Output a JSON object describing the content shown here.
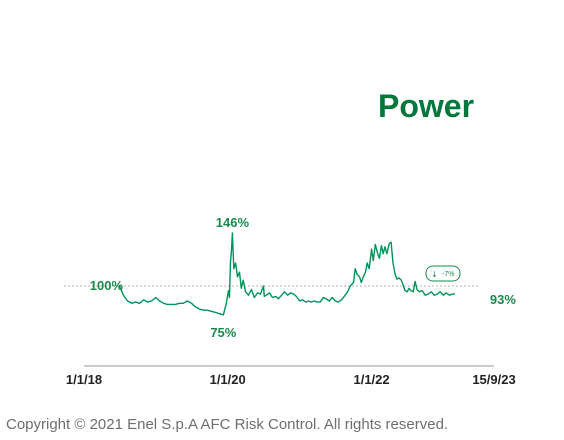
{
  "title": "Power",
  "copyright": "Copyright © 2021 Enel S.p.A AFC Risk Control. All rights reserved.",
  "colors": {
    "series": "#00935a",
    "title": "#00783c",
    "label": "#1a8a4c",
    "axis": "#9a9a9a",
    "text": "#222222"
  },
  "chart_data": {
    "type": "line",
    "title": "Power",
    "x_tick_labels": [
      "1/1/18",
      "1/1/20",
      "1/1/22",
      "15/9/23"
    ],
    "x_tick_dates": [
      "2018-01-01",
      "2020-01-01",
      "2022-01-01",
      "2023-09-15"
    ],
    "reference_line": {
      "value": 100,
      "label": "100%",
      "style": "dashed"
    },
    "annotations": [
      {
        "text": "146%",
        "date": "2020-01-25",
        "value": 146
      },
      {
        "text": "75%",
        "date": "2019-12-10",
        "value": 75
      },
      {
        "text": "93%",
        "date": "2023-06-20",
        "value": 93
      }
    ],
    "badge": {
      "text": "-7%",
      "icon": "down-arrow-icon"
    },
    "grid": false,
    "series": [
      {
        "values": [
          [
            "2018-07-01",
            100
          ],
          [
            "2018-07-20",
            92
          ],
          [
            "2018-08-10",
            87
          ],
          [
            "2018-09-01",
            85
          ],
          [
            "2018-09-20",
            86
          ],
          [
            "2018-10-10",
            85
          ],
          [
            "2018-11-01",
            88
          ],
          [
            "2018-11-20",
            86
          ],
          [
            "2018-12-10",
            87
          ],
          [
            "2019-01-01",
            90
          ],
          [
            "2019-01-20",
            87
          ],
          [
            "2019-02-10",
            85
          ],
          [
            "2019-03-01",
            84
          ],
          [
            "2019-03-20",
            84
          ],
          [
            "2019-04-10",
            84
          ],
          [
            "2019-05-01",
            85
          ],
          [
            "2019-05-20",
            85
          ],
          [
            "2019-06-10",
            87
          ],
          [
            "2019-07-01",
            85
          ],
          [
            "2019-07-20",
            82
          ],
          [
            "2019-08-10",
            80
          ],
          [
            "2019-09-01",
            79
          ],
          [
            "2019-09-20",
            79
          ],
          [
            "2019-10-10",
            78
          ],
          [
            "2019-11-01",
            77
          ],
          [
            "2019-11-20",
            76
          ],
          [
            "2019-12-10",
            75
          ],
          [
            "2019-12-25",
            85
          ],
          [
            "2020-01-05",
            96
          ],
          [
            "2020-01-10",
            90
          ],
          [
            "2020-01-15",
            120
          ],
          [
            "2020-01-20",
            130
          ],
          [
            "2020-01-25",
            146
          ],
          [
            "2020-02-01",
            115
          ],
          [
            "2020-02-10",
            120
          ],
          [
            "2020-02-20",
            108
          ],
          [
            "2020-03-01",
            112
          ],
          [
            "2020-03-10",
            98
          ],
          [
            "2020-03-20",
            105
          ],
          [
            "2020-04-01",
            95
          ],
          [
            "2020-04-15",
            92
          ],
          [
            "2020-05-01",
            97
          ],
          [
            "2020-05-15",
            90
          ],
          [
            "2020-06-01",
            94
          ],
          [
            "2020-06-15",
            93
          ],
          [
            "2020-07-01",
            100
          ],
          [
            "2020-07-05",
            91
          ],
          [
            "2020-07-15",
            92
          ],
          [
            "2020-08-01",
            94
          ],
          [
            "2020-08-15",
            90
          ],
          [
            "2020-09-01",
            91
          ],
          [
            "2020-09-15",
            89
          ],
          [
            "2020-10-01",
            92
          ],
          [
            "2020-10-15",
            95
          ],
          [
            "2020-11-01",
            92
          ],
          [
            "2020-11-15",
            94
          ],
          [
            "2020-12-01",
            93
          ],
          [
            "2020-12-15",
            91
          ],
          [
            "2021-01-01",
            87
          ],
          [
            "2021-01-15",
            88
          ],
          [
            "2021-02-01",
            86
          ],
          [
            "2021-02-15",
            87
          ],
          [
            "2021-03-01",
            86
          ],
          [
            "2021-03-15",
            87
          ],
          [
            "2021-04-01",
            86
          ],
          [
            "2021-04-15",
            86
          ],
          [
            "2021-05-01",
            90
          ],
          [
            "2021-05-15",
            89
          ],
          [
            "2021-06-01",
            87
          ],
          [
            "2021-06-15",
            90
          ],
          [
            "2021-07-01",
            87
          ],
          [
            "2021-07-15",
            86
          ],
          [
            "2021-08-01",
            88
          ],
          [
            "2021-08-15",
            91
          ],
          [
            "2021-09-01",
            95
          ],
          [
            "2021-09-15",
            100
          ],
          [
            "2021-10-01",
            103
          ],
          [
            "2021-10-10",
            115
          ],
          [
            "2021-10-20",
            110
          ],
          [
            "2021-11-01",
            108
          ],
          [
            "2021-11-10",
            103
          ],
          [
            "2021-11-20",
            108
          ],
          [
            "2021-12-01",
            112
          ],
          [
            "2021-12-10",
            120
          ],
          [
            "2021-12-20",
            115
          ],
          [
            "2022-01-01",
            132
          ],
          [
            "2022-01-10",
            122
          ],
          [
            "2022-01-20",
            136
          ],
          [
            "2022-02-01",
            128
          ],
          [
            "2022-02-10",
            124
          ],
          [
            "2022-02-20",
            135
          ],
          [
            "2022-03-01",
            128
          ],
          [
            "2022-03-10",
            134
          ],
          [
            "2022-03-20",
            128
          ],
          [
            "2022-04-01",
            137
          ],
          [
            "2022-04-10",
            138
          ],
          [
            "2022-04-20",
            120
          ],
          [
            "2022-05-01",
            110
          ],
          [
            "2022-05-10",
            106
          ],
          [
            "2022-05-20",
            107
          ],
          [
            "2022-06-01",
            105
          ],
          [
            "2022-06-10",
            101
          ],
          [
            "2022-06-20",
            96
          ],
          [
            "2022-07-01",
            95
          ],
          [
            "2022-07-10",
            98
          ],
          [
            "2022-07-20",
            96
          ],
          [
            "2022-08-01",
            95
          ],
          [
            "2022-08-10",
            104
          ],
          [
            "2022-08-20",
            97
          ],
          [
            "2022-09-01",
            95
          ],
          [
            "2022-09-15",
            96
          ],
          [
            "2022-10-01",
            92
          ],
          [
            "2022-10-15",
            93
          ],
          [
            "2022-11-01",
            95
          ],
          [
            "2022-11-15",
            92
          ],
          [
            "2022-12-01",
            93
          ],
          [
            "2022-12-15",
            95
          ],
          [
            "2023-01-01",
            92
          ],
          [
            "2023-01-15",
            94
          ],
          [
            "2023-02-01",
            92
          ],
          [
            "2023-02-15",
            93
          ],
          [
            "2023-03-01",
            93
          ]
        ]
      }
    ]
  }
}
